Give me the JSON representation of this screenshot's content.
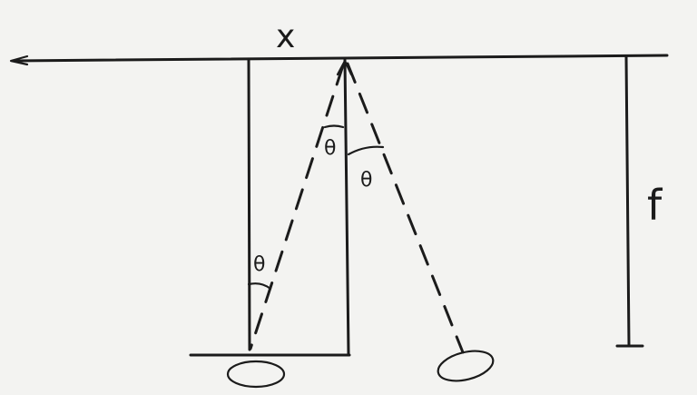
{
  "labels": {
    "axis": "x",
    "focal": "f",
    "angle_top_left": "θ",
    "angle_top_right": "θ",
    "angle_bottom": "θ"
  },
  "colors": {
    "ink": "#1b1b1b",
    "paper": "#f3f3f1"
  }
}
